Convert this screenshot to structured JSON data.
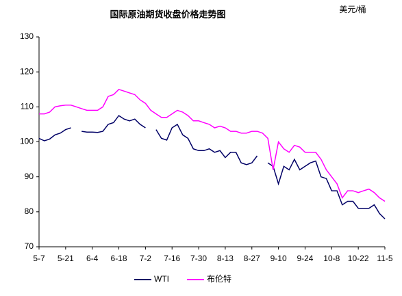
{
  "chart_data": {
    "type": "line",
    "title": "国际原油期货收盘价格走势图",
    "unit_label": "美元/桶",
    "categories": [
      "5-7",
      null,
      null,
      null,
      null,
      "5-21",
      null,
      null,
      null,
      null,
      "6-4",
      null,
      null,
      null,
      null,
      "6-18",
      null,
      null,
      null,
      null,
      "7-2",
      null,
      null,
      null,
      null,
      "7-16",
      null,
      null,
      null,
      null,
      "7-30",
      null,
      null,
      null,
      null,
      "8-13",
      null,
      null,
      null,
      null,
      "8-27",
      null,
      null,
      null,
      null,
      "9-10",
      null,
      null,
      null,
      null,
      "9-24",
      null,
      null,
      null,
      null,
      "10-8",
      null,
      null,
      null,
      null,
      "10-22",
      null,
      null,
      null,
      null,
      "11-5"
    ],
    "series": [
      {
        "name": "WTI",
        "color": "#000066",
        "values": [
          101,
          100.3,
          100.8,
          102,
          102.5,
          103.5,
          104,
          null,
          103,
          102.8,
          102.8,
          102.7,
          103,
          105,
          105.5,
          107.5,
          106.5,
          106,
          106.5,
          105,
          104,
          null,
          103.5,
          101,
          100.5,
          104,
          105,
          102,
          101,
          98,
          97.5,
          97.5,
          98,
          97,
          97.5,
          95.5,
          97,
          97,
          94,
          93.5,
          94,
          96,
          null,
          94,
          93,
          88,
          93,
          92,
          95,
          92,
          93,
          94,
          94.5,
          90,
          89.5,
          86,
          86,
          82,
          83,
          83,
          81,
          81,
          81,
          82,
          79.5,
          78
        ]
      },
      {
        "name": "布伦特",
        "color": "#ff00ff",
        "values": [
          108,
          108,
          108.5,
          110,
          110.3,
          110.5,
          110.5,
          110,
          109.5,
          109,
          109,
          109,
          110,
          113,
          113.5,
          115,
          114.5,
          114,
          113.5,
          112,
          111,
          109,
          108,
          107,
          107,
          108,
          109,
          108.5,
          107.5,
          106,
          106,
          105.5,
          105,
          104,
          104.5,
          104,
          103,
          103,
          102.5,
          102.5,
          103,
          103,
          102.5,
          101,
          92,
          100,
          98,
          97,
          99,
          98.5,
          97,
          97,
          97,
          95,
          92,
          90,
          88,
          84,
          86,
          86,
          85.5,
          86,
          86.5,
          85.5,
          84,
          83
        ]
      }
    ],
    "ylim": [
      70,
      130
    ],
    "yticks": [
      70,
      80,
      90,
      100,
      110,
      120,
      130
    ],
    "grid": false,
    "legend": "bottom"
  }
}
